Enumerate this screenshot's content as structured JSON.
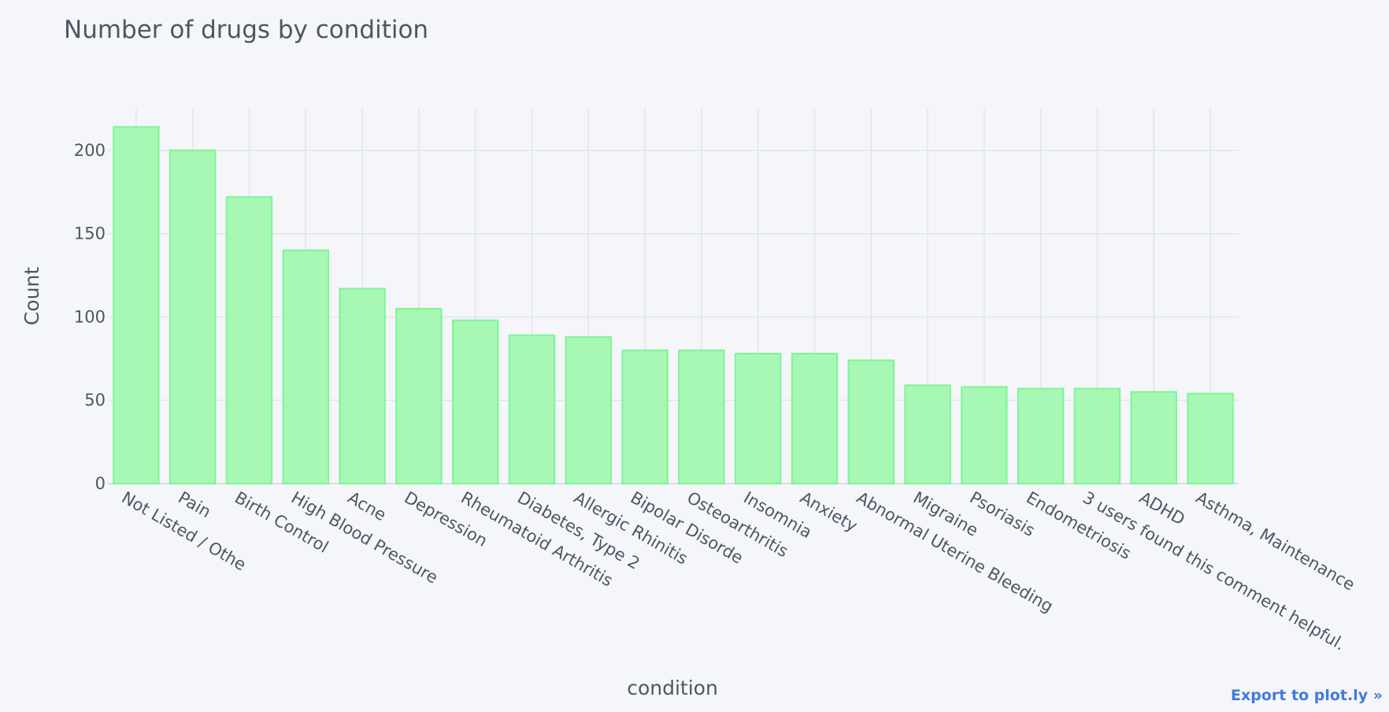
{
  "colors": {
    "background": "#f5f6fa",
    "bar_fill": "#a6f8b4",
    "bar_stroke": "#7ef595",
    "text": "#4d5663",
    "grid": "#e1e5ed",
    "link": "#447adb"
  },
  "export_link": {
    "label": "Export to plot.ly »"
  },
  "chart_data": {
    "type": "bar",
    "title": "Number of drugs by condition",
    "xlabel": "condition",
    "ylabel": "Count",
    "ylim": [
      0,
      225
    ],
    "yticks": [
      0,
      50,
      100,
      150,
      200
    ],
    "grid": true,
    "legend": "none",
    "categories": [
      "Not Listed / Othe",
      "Pain",
      "Birth Control",
      "High Blood Pressure",
      "Acne",
      "Depression",
      "Rheumatoid Arthritis",
      "Diabetes, Type 2",
      "Allergic Rhinitis",
      "Bipolar Disorde",
      "Osteoarthritis",
      "Insomnia",
      "Anxiety",
      "Abnormal Uterine Bleeding",
      "Migraine",
      "Psoriasis",
      "Endometriosis",
      "3 users found this comment helpful.",
      "ADHD",
      "Asthma, Maintenance"
    ],
    "values": [
      214,
      200,
      172,
      140,
      117,
      105,
      98,
      89,
      88,
      80,
      80,
      78,
      78,
      74,
      59,
      58,
      57,
      57,
      55,
      54
    ]
  }
}
